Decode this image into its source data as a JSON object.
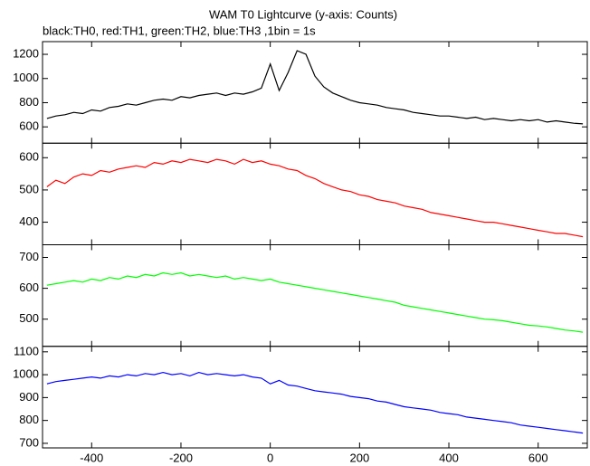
{
  "chart_data": [
    {
      "type": "line",
      "title": "WAM T0 Lightcurve (y-axis: Counts)",
      "subtitle": "black:TH0, red:TH1, green:TH2, blue:TH3 ,1bin = 1s",
      "x": [
        -500,
        -480,
        -460,
        -440,
        -420,
        -400,
        -380,
        -360,
        -340,
        -320,
        -300,
        -280,
        -260,
        -240,
        -220,
        -200,
        -180,
        -160,
        -140,
        -120,
        -100,
        -80,
        -60,
        -40,
        -20,
        0,
        20,
        40,
        60,
        80,
        100,
        120,
        140,
        160,
        180,
        200,
        220,
        240,
        260,
        280,
        300,
        320,
        340,
        360,
        380,
        400,
        420,
        440,
        460,
        480,
        500,
        520,
        540,
        560,
        580,
        600,
        620,
        640,
        660,
        680,
        700
      ],
      "series": [
        {
          "color": "#000000",
          "values": [
            670,
            690,
            700,
            720,
            710,
            740,
            730,
            760,
            770,
            790,
            780,
            800,
            820,
            830,
            820,
            850,
            840,
            860,
            870,
            880,
            860,
            880,
            870,
            890,
            920,
            1120,
            900,
            1050,
            1230,
            1200,
            1020,
            930,
            880,
            850,
            820,
            800,
            790,
            780,
            760,
            750,
            740,
            720,
            710,
            700,
            690,
            690,
            680,
            670,
            680,
            660,
            670,
            660,
            650,
            660,
            650,
            660,
            640,
            650,
            640,
            630,
            625
          ]
        }
      ],
      "xlim": [
        -510,
        710
      ],
      "ylim": [
        465,
        1305
      ],
      "yticks": [
        600,
        800,
        1000,
        1200
      ]
    },
    {
      "type": "line",
      "x": [
        -500,
        -480,
        -460,
        -440,
        -420,
        -400,
        -380,
        -360,
        -340,
        -320,
        -300,
        -280,
        -260,
        -240,
        -220,
        -200,
        -180,
        -160,
        -140,
        -120,
        -100,
        -80,
        -60,
        -40,
        -20,
        0,
        20,
        40,
        60,
        80,
        100,
        120,
        140,
        160,
        180,
        200,
        220,
        240,
        260,
        280,
        300,
        320,
        340,
        360,
        380,
        400,
        420,
        440,
        460,
        480,
        500,
        520,
        540,
        560,
        580,
        600,
        620,
        640,
        660,
        680,
        700
      ],
      "series": [
        {
          "color": "#ff0000",
          "values": [
            510,
            530,
            520,
            540,
            550,
            545,
            560,
            555,
            565,
            570,
            575,
            570,
            585,
            580,
            590,
            585,
            595,
            590,
            585,
            595,
            590,
            580,
            595,
            585,
            590,
            580,
            575,
            565,
            560,
            545,
            535,
            520,
            510,
            500,
            495,
            485,
            480,
            470,
            465,
            460,
            450,
            445,
            440,
            430,
            425,
            420,
            415,
            410,
            405,
            400,
            400,
            395,
            390,
            385,
            380,
            375,
            370,
            365,
            365,
            360,
            355
          ]
        }
      ],
      "xlim": [
        -510,
        710
      ],
      "ylim": [
        330,
        645
      ],
      "yticks": [
        400,
        500,
        600
      ]
    },
    {
      "type": "line",
      "x": [
        -500,
        -480,
        -460,
        -440,
        -420,
        -400,
        -380,
        -360,
        -340,
        -320,
        -300,
        -280,
        -260,
        -240,
        -220,
        -200,
        -180,
        -160,
        -140,
        -120,
        -100,
        -80,
        -60,
        -40,
        -20,
        0,
        20,
        40,
        60,
        80,
        100,
        120,
        140,
        160,
        180,
        200,
        220,
        240,
        260,
        280,
        300,
        320,
        340,
        360,
        380,
        400,
        420,
        440,
        460,
        480,
        500,
        520,
        540,
        560,
        580,
        600,
        620,
        640,
        660,
        680,
        700
      ],
      "series": [
        {
          "color": "#00ff00",
          "values": [
            610,
            615,
            620,
            625,
            620,
            630,
            625,
            635,
            630,
            640,
            635,
            645,
            640,
            650,
            645,
            650,
            640,
            645,
            640,
            635,
            640,
            630,
            635,
            630,
            625,
            630,
            620,
            615,
            610,
            605,
            600,
            595,
            590,
            585,
            580,
            575,
            570,
            565,
            560,
            555,
            545,
            540,
            535,
            530,
            525,
            520,
            515,
            510,
            505,
            500,
            498,
            495,
            490,
            485,
            480,
            478,
            475,
            470,
            465,
            462,
            458
          ]
        }
      ],
      "xlim": [
        -510,
        710
      ],
      "ylim": [
        412,
        741
      ],
      "yticks": [
        500,
        600,
        700
      ]
    },
    {
      "type": "line",
      "x": [
        -500,
        -480,
        -460,
        -440,
        -420,
        -400,
        -380,
        -360,
        -340,
        -320,
        -300,
        -280,
        -260,
        -240,
        -220,
        -200,
        -180,
        -160,
        -140,
        -120,
        -100,
        -80,
        -60,
        -40,
        -20,
        0,
        20,
        40,
        60,
        80,
        100,
        120,
        140,
        160,
        180,
        200,
        220,
        240,
        260,
        280,
        300,
        320,
        340,
        360,
        380,
        400,
        420,
        440,
        460,
        480,
        500,
        520,
        540,
        560,
        580,
        600,
        620,
        640,
        660,
        680,
        700
      ],
      "series": [
        {
          "color": "#0000ff",
          "values": [
            960,
            970,
            975,
            980,
            985,
            990,
            985,
            995,
            990,
            1000,
            995,
            1005,
            1000,
            1010,
            1000,
            1005,
            995,
            1010,
            1000,
            1005,
            1000,
            995,
            1000,
            990,
            985,
            960,
            975,
            955,
            950,
            940,
            930,
            925,
            920,
            915,
            905,
            900,
            895,
            885,
            880,
            870,
            860,
            855,
            850,
            845,
            835,
            830,
            825,
            815,
            810,
            805,
            800,
            795,
            790,
            780,
            775,
            770,
            765,
            760,
            755,
            750,
            745
          ]
        }
      ],
      "xlim": [
        -510,
        710
      ],
      "ylim": [
        680,
        1124
      ],
      "yticks": [
        700,
        800,
        900,
        1000,
        1100
      ],
      "xticks": [
        -400,
        -200,
        0,
        200,
        400,
        600
      ]
    }
  ]
}
